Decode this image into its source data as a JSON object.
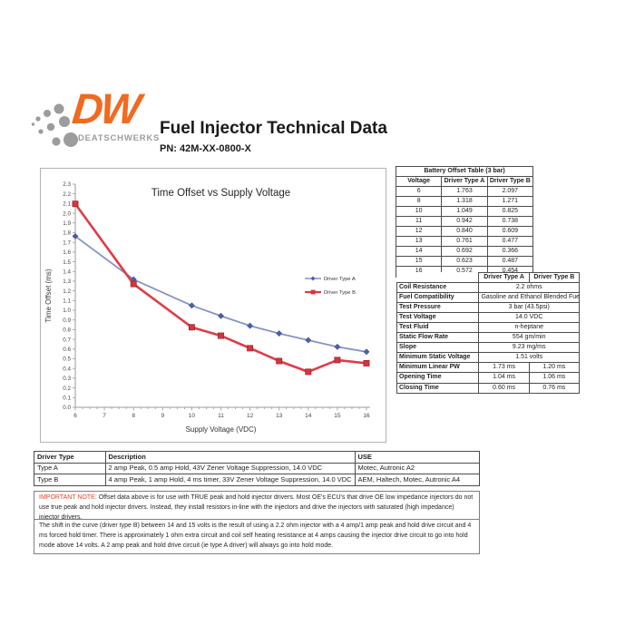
{
  "header": {
    "logo": {
      "dw": "DW",
      "brand": "DEATSCHWERKS",
      "orange": "#F16A22",
      "gray": "#9c9c9c"
    },
    "title": "Fuel Injector Technical Data",
    "part_number": "PN: 42M-XX-0800-X"
  },
  "chart_data": {
    "type": "line",
    "title": "Time Offset vs Supply Voltage",
    "xlabel": "Supply Voltage (VDC)",
    "ylabel": "Time Offset (ms)",
    "xlim": [
      6,
      16
    ],
    "ylim": [
      0,
      2.3
    ],
    "x_tick_step": 1,
    "y_tick_step": 0.1,
    "grid": false,
    "legend_position": "middle-right",
    "x": [
      6,
      8,
      10,
      11,
      12,
      13,
      14,
      15,
      16
    ],
    "series": [
      {
        "name": "Driver Type A",
        "marker": "diamond",
        "line_color": "#8793C6",
        "marker_color": "#4A60AC",
        "values": [
          1.763,
          1.318,
          1.049,
          0.942,
          0.84,
          0.761,
          0.692,
          0.623,
          0.572
        ]
      },
      {
        "name": "Driver Type B",
        "marker": "square",
        "line_color": "#E13B45",
        "marker_color": "#D8333D",
        "values": [
          2.097,
          1.271,
          0.825,
          0.738,
          0.609,
          0.477,
          0.366,
          0.487,
          0.454
        ]
      }
    ]
  },
  "battery_table": {
    "title": "Battery Offset Table (3 bar)",
    "headers": [
      "Voltage",
      "Driver Type A",
      "Driver Type B"
    ],
    "rows": [
      [
        "6",
        "1.763",
        "2.097"
      ],
      [
        "8",
        "1.318",
        "1.271"
      ],
      [
        "10",
        "1.049",
        "0.825"
      ],
      [
        "11",
        "0.942",
        "0.738"
      ],
      [
        "12",
        "0.840",
        "0.609"
      ],
      [
        "13",
        "0.761",
        "0.477"
      ],
      [
        "14",
        "0.692",
        "0.366"
      ],
      [
        "15",
        "0.623",
        "0.487"
      ],
      [
        "16",
        "0.572",
        "0.454"
      ]
    ]
  },
  "spec_table": {
    "headers": [
      "",
      "Driver Type A",
      "Driver Type B"
    ],
    "rows": [
      {
        "label": "Coil Resistance",
        "span": "2.2 ohms"
      },
      {
        "label": "Fuel Compatibility",
        "span": "Gasoline and Ethanol Blended Fuels"
      },
      {
        "label": "Test Pressure",
        "span": "3 bar (43.5psi)"
      },
      {
        "label": "Test Voltage",
        "span": "14.0 VDC"
      },
      {
        "label": "Test Fluid",
        "span": "n-heptane"
      },
      {
        "label": "Static Flow Rate",
        "span": "554 gm/min"
      },
      {
        "label": "Slope",
        "span": "9.23 mg/ms"
      },
      {
        "label": "Minimum Static Voltage",
        "span": "1.51 volts"
      },
      {
        "label": "Minimum Linear PW",
        "a": "1.73 ms",
        "b": "1.20 ms"
      },
      {
        "label": "Opening Time",
        "a": "1.04 ms",
        "b": "1.06 ms"
      },
      {
        "label": "Closing Time",
        "a": "0.60 ms",
        "b": "0.76 ms"
      }
    ]
  },
  "driver_table": {
    "headers": [
      "Driver Type",
      "Description",
      "USE"
    ],
    "rows": [
      [
        "Type A",
        "2 amp Peak, 0.5 amp Hold, 43V Zener Voltage Suppression, 14.0 VDC",
        "Motec, Autronic A2"
      ],
      [
        "Type B",
        "4 amp Peak, 1 amp Hold, 4 ms timer, 33V Zener Voltage Suppression, 14.0 VDC",
        "AEM, Haltech, Motec, Autronic A4"
      ]
    ]
  },
  "notes": {
    "important_label": "IMPORTANT NOTE:",
    "important_text": " Offset data above is for use with TRUE peak and hold injector drivers.  Most OE's ECU's that drive OE low impedance injectors do not use true peak and hold injector drivers.  Instead, they install resistors in-line with the injectors and drive the injectors with saturated (high impedance) injector drivers.",
    "shift_note": "The shift in the curve (driver type B) between 14 and 15 volts is the result of using a 2.2 ohm injector with a 4 amp/1 amp peak and hold drive circuit and 4 ms forced hold timer. There is approximately 1 ohm extra circuit and coil self heating resistance at 4 amps causing the injector drive circuit to go into hold mode above 14 volts. A 2 amp peak and hold drive circuit (ie type A driver) will always go into hold mode."
  }
}
